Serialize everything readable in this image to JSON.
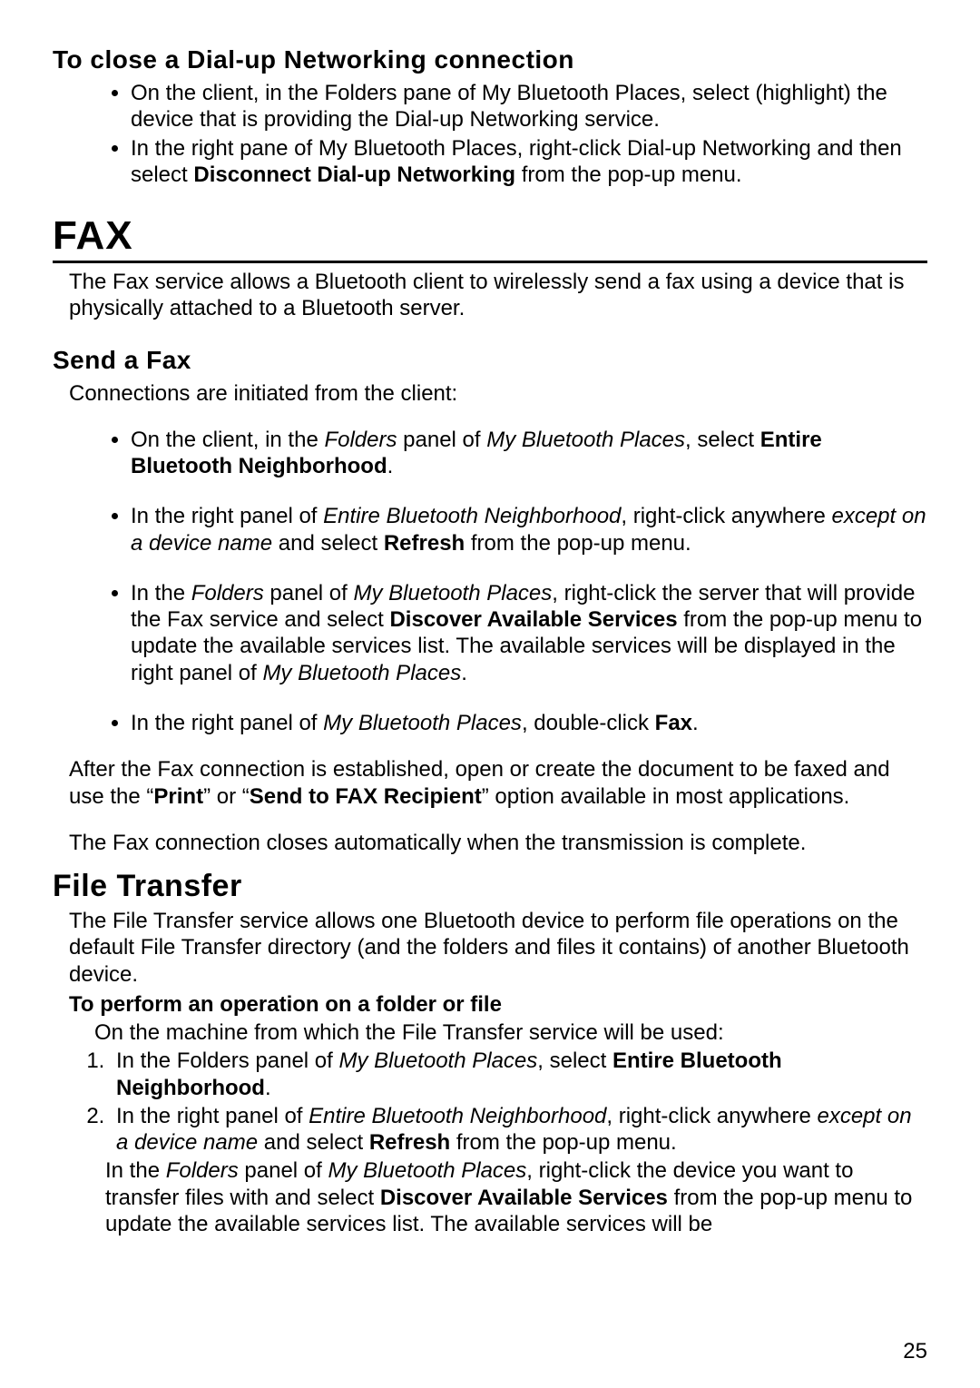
{
  "section_close": {
    "heading": "To close a Dial-up Networking connection",
    "bullets": [
      "On the client, in the Folders pane of My Bluetooth Places, select (highlight) the device that is providing the Dial-up Networking service.",
      "In the right pane of My Bluetooth Places, right-click Dial-up Networking and then select <b>Disconnect Dial-up Networking</b> from the pop-up menu."
    ]
  },
  "fax": {
    "heading": "FAX",
    "intro": "The Fax service allows a Bluetooth client to wirelessly send a fax using a device that is physically attached to a Bluetooth server.",
    "send_heading": "Send a Fax",
    "send_intro": "Connections are initiated from the client:",
    "bullets": [
      "On the client, in the <i>Folders</i> panel of <i>My Bluetooth Places</i>, select <b>Entire Bluetooth Neighborhood</b>.",
      "In the right panel of <i>Entire Bluetooth Neighborhood</i>, right-click anywhere <i>except on a device name</i> and select <b>Refresh</b> from the pop-up menu.",
      "In the <i>Folders</i> panel of <i>My Bluetooth Places</i>, right-click the server that will provide the Fax service and select <b>Discover Available Services</b> from the pop-up menu to update the available services list. The available services will be displayed in the right panel of <i>My Bluetooth Places</i>.",
      "In the right panel of <i>My Bluetooth Places</i>, double-click <b>Fax</b>."
    ],
    "after1": "After the Fax connection is established, open or create the document to be faxed and use the “<b>Print</b>” or “<b>Send to FAX Recipient</b>” option available in most applications.",
    "after2": "The Fax connection closes automatically when the transmission is complete."
  },
  "file_transfer": {
    "heading": "File Transfer",
    "intro": "The File Transfer service allows one Bluetooth device to perform file operations on the default File Transfer directory (and the folders and files it contains) of another Bluetooth device.",
    "subhead": "To perform an operation on a folder or file",
    "subintro": "On the machine from which the File Transfer service will be used:",
    "ol": [
      "In the Folders panel of <i>My Bluetooth Places</i>, select <b>Entire Bluetooth Neighborhood</b>.",
      "In the right panel of <i>Entire Bluetooth Neighborhood</i>, right-click anywhere <i>except on a device name</i> and select <b>Refresh</b> from the pop-up menu."
    ],
    "trailing": "In the <i>Folders</i> panel of <i>My Bluetooth Places</i>, right-click the device you want to transfer files with and select <b>Discover Available Services</b> from the pop-up menu to update the available services list.  The available services will be"
  },
  "page_number": "25"
}
